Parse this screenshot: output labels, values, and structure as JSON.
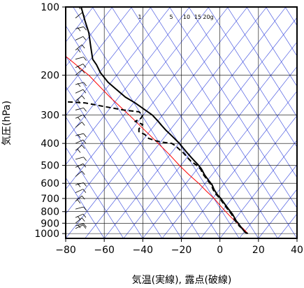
{
  "chart_data": {
    "type": "line",
    "title": "",
    "xlabel": "気温(実線), 露点(破線)",
    "ylabel": "気圧(hPa)",
    "xlim": [
      -80,
      40
    ],
    "ylim": [
      1050,
      100
    ],
    "yscale": "log",
    "grid": true,
    "x_ticks": [
      -80,
      -60,
      -40,
      -20,
      0,
      20,
      40
    ],
    "x_tick_labels": [
      "−80",
      "−60",
      "−40",
      "−20",
      "0",
      "20",
      "40"
    ],
    "y_ticks": [
      100,
      200,
      300,
      400,
      500,
      600,
      700,
      800,
      900,
      1000
    ],
    "y_tick_labels": [
      "100",
      "200",
      "300",
      "400",
      "500",
      "600",
      "700",
      "800",
      "900",
      "1000"
    ],
    "mixing_ratio_labels": [
      "1",
      "5",
      "10",
      "15",
      "20g"
    ],
    "colors": {
      "temperature": "#000000",
      "dewpoint": "#000000",
      "parcel": "#ff0000",
      "skew_lines": "#3344dd",
      "grid": "#000000"
    },
    "series": [
      {
        "style": "solid",
        "color": "#000000",
        "points": [
          {
            "t": 14.5,
            "p": 1000
          },
          {
            "t": 13,
            "p": 985
          },
          {
            "t": 11.5,
            "p": 950
          },
          {
            "t": 10.5,
            "p": 925
          },
          {
            "t": 9.5,
            "p": 900
          },
          {
            "t": 8.5,
            "p": 880
          },
          {
            "t": 7.5,
            "p": 850
          },
          {
            "t": 6.5,
            "p": 820
          },
          {
            "t": 4.5,
            "p": 780
          },
          {
            "t": 3,
            "p": 750
          },
          {
            "t": 1.5,
            "p": 720
          },
          {
            "t": 0.5,
            "p": 700
          },
          {
            "t": -1.5,
            "p": 670
          },
          {
            "t": -3,
            "p": 640
          },
          {
            "t": -4,
            "p": 610
          },
          {
            "t": -6,
            "p": 580
          },
          {
            "t": -8,
            "p": 550
          },
          {
            "t": -9.5,
            "p": 520
          },
          {
            "t": -11,
            "p": 500
          },
          {
            "t": -13,
            "p": 480
          },
          {
            "t": -15,
            "p": 460
          },
          {
            "t": -18,
            "p": 430
          },
          {
            "t": -21,
            "p": 400
          },
          {
            "t": -25,
            "p": 370
          },
          {
            "t": -28,
            "p": 350
          },
          {
            "t": -30,
            "p": 335
          },
          {
            "t": -32,
            "p": 320
          },
          {
            "t": -35,
            "p": 300
          },
          {
            "t": -40,
            "p": 280
          },
          {
            "t": -44,
            "p": 265
          },
          {
            "t": -49,
            "p": 250
          },
          {
            "t": -54,
            "p": 230
          },
          {
            "t": -58,
            "p": 215
          },
          {
            "t": -62,
            "p": 195
          },
          {
            "t": -64,
            "p": 180
          },
          {
            "t": -66,
            "p": 170
          },
          {
            "t": -67,
            "p": 150
          },
          {
            "t": -68,
            "p": 130
          },
          {
            "t": -70,
            "p": 115
          },
          {
            "t": -72,
            "p": 100
          }
        ]
      },
      {
        "style": "dashed",
        "color": "#000000",
        "points": [
          {
            "t": 14,
            "p": 1000
          },
          {
            "t": 13,
            "p": 985
          },
          {
            "t": 11.5,
            "p": 950
          },
          {
            "t": 10,
            "p": 925
          },
          {
            "t": 9,
            "p": 900
          },
          {
            "t": 8,
            "p": 880
          },
          {
            "t": 7,
            "p": 850
          },
          {
            "t": 6,
            "p": 820
          },
          {
            "t": 4,
            "p": 780
          },
          {
            "t": 2.5,
            "p": 750
          },
          {
            "t": 1,
            "p": 720
          },
          {
            "t": 0,
            "p": 700
          },
          {
            "t": -2,
            "p": 670
          },
          {
            "t": -3.5,
            "p": 640
          },
          {
            "t": -4.5,
            "p": 610
          },
          {
            "t": -6.5,
            "p": 580
          },
          {
            "t": -8.5,
            "p": 550
          },
          {
            "t": -10,
            "p": 520
          },
          {
            "t": -12,
            "p": 500
          },
          {
            "t": -15,
            "p": 480
          },
          {
            "t": -17,
            "p": 460
          },
          {
            "t": -19,
            "p": 440
          },
          {
            "t": -21,
            "p": 425
          },
          {
            "t": -23,
            "p": 410
          },
          {
            "t": -25,
            "p": 400
          },
          {
            "t": -30,
            "p": 395
          },
          {
            "t": -33,
            "p": 390
          },
          {
            "t": -37,
            "p": 380
          },
          {
            "t": -39,
            "p": 365
          },
          {
            "t": -42,
            "p": 355
          },
          {
            "t": -42,
            "p": 345
          },
          {
            "t": -40,
            "p": 330
          },
          {
            "t": -44,
            "p": 320
          },
          {
            "t": -41,
            "p": 310
          },
          {
            "t": -40,
            "p": 300
          },
          {
            "t": -42,
            "p": 290
          },
          {
            "t": -50,
            "p": 285
          },
          {
            "t": -60,
            "p": 275
          },
          {
            "t": -70,
            "p": 265
          },
          {
            "t": -80,
            "p": 262
          }
        ]
      },
      {
        "style": "solid",
        "color": "#ff0000",
        "points": [
          {
            "t": 14.5,
            "p": 1000
          },
          {
            "t": 12,
            "p": 950
          },
          {
            "t": 9,
            "p": 900
          },
          {
            "t": 6,
            "p": 850
          },
          {
            "t": 3,
            "p": 800
          },
          {
            "t": 0,
            "p": 750
          },
          {
            "t": -3,
            "p": 700
          },
          {
            "t": -7,
            "p": 650
          },
          {
            "t": -11,
            "p": 600
          },
          {
            "t": -16,
            "p": 550
          },
          {
            "t": -21,
            "p": 500
          },
          {
            "t": -26,
            "p": 450
          },
          {
            "t": -32,
            "p": 400
          },
          {
            "t": -39,
            "p": 350
          },
          {
            "t": -47,
            "p": 300
          },
          {
            "t": -57,
            "p": 250
          },
          {
            "t": -68,
            "p": 200
          },
          {
            "t": -80,
            "p": 165
          }
        ]
      }
    ]
  }
}
